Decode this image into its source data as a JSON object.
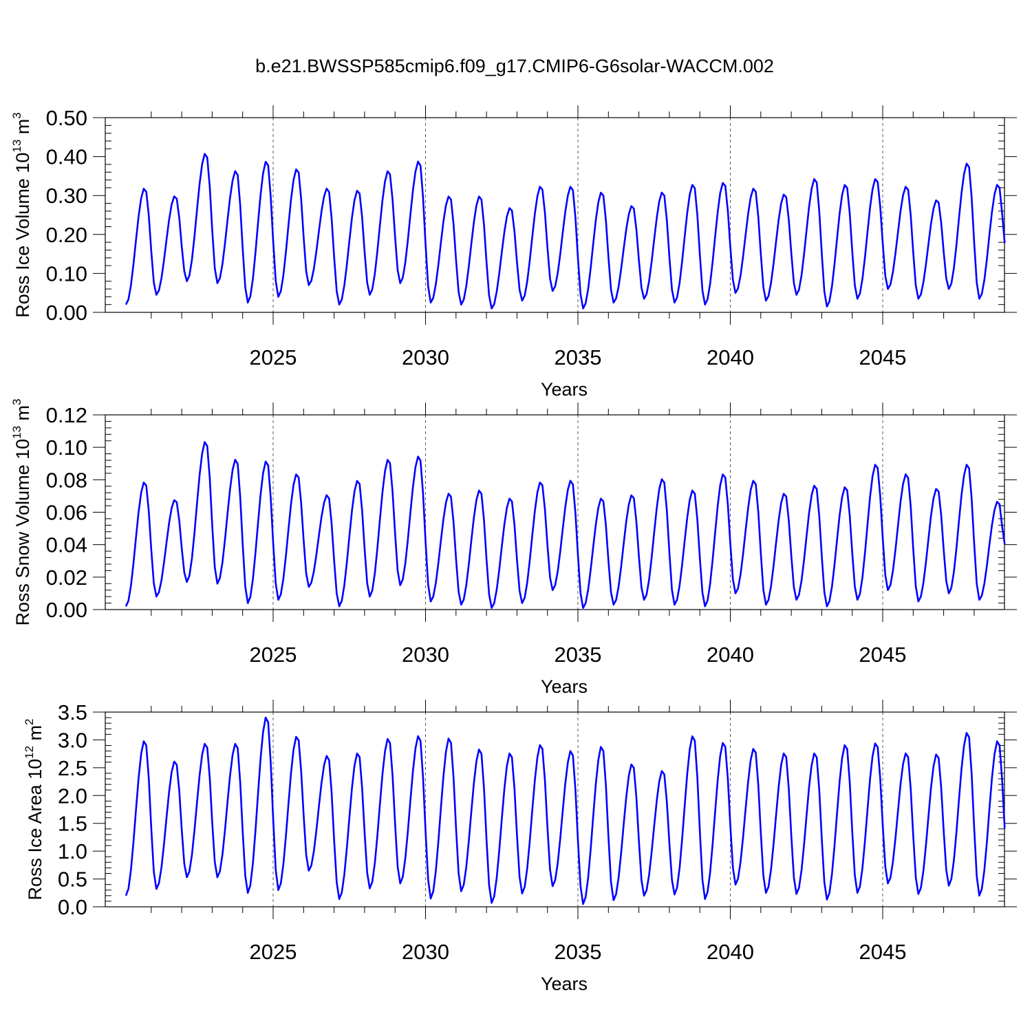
{
  "title": "b.e21.BWSSP585cmip6.f09_g17.CMIP6-G6solar-WACCM.002",
  "chart_data": [
    {
      "type": "line",
      "ylabel": "Ross Ice Volume",
      "ylabel_unit_base": "10",
      "ylabel_unit_exp": "13",
      "ylabel_unit_tail": " m",
      "ylabel_unit_sup": "3",
      "xlabel": "Years",
      "xlim": [
        2020.17,
        2049.0
      ],
      "ylim": [
        0.0,
        0.5
      ],
      "yticks": [
        "0.00",
        "0.10",
        "0.20",
        "0.30",
        "0.40",
        "0.50"
      ],
      "ytick_values": [
        0.0,
        0.1,
        0.2,
        0.3,
        0.4,
        0.5
      ],
      "xticks": [
        "2025",
        "2030",
        "2035",
        "2040",
        "2045"
      ],
      "xtick_values": [
        2025,
        2030,
        2035,
        2040,
        2045
      ],
      "grid": "vertical dashed at major x ticks",
      "series": [
        {
          "color": "#0000ff",
          "start_year": 2020.17,
          "step_years": 0.08333,
          "peaks": [
            0.32,
            0.3,
            0.41,
            0.365,
            0.39,
            0.37,
            0.32,
            0.315,
            0.365,
            0.39,
            0.3,
            0.3,
            0.27,
            0.325,
            0.325,
            0.31,
            0.275,
            0.31,
            0.33,
            0.335,
            0.32,
            0.305,
            0.345,
            0.33,
            0.345,
            0.325,
            0.29,
            0.385,
            0.33
          ],
          "troughs": [
            0.02,
            0.045,
            0.08,
            0.075,
            0.025,
            0.04,
            0.07,
            0.02,
            0.045,
            0.075,
            0.025,
            0.02,
            0.01,
            0.03,
            0.055,
            0.01,
            0.025,
            0.035,
            0.025,
            0.02,
            0.05,
            0.03,
            0.045,
            0.015,
            0.035,
            0.06,
            0.035,
            0.06,
            0.035
          ]
        }
      ]
    },
    {
      "type": "line",
      "ylabel": "Ross Snow Volume",
      "ylabel_unit_base": "10",
      "ylabel_unit_exp": "13",
      "ylabel_unit_tail": " m",
      "ylabel_unit_sup": "3",
      "xlabel": "Years",
      "xlim": [
        2020.17,
        2049.0
      ],
      "ylim": [
        0.0,
        0.12
      ],
      "yticks": [
        "0.00",
        "0.02",
        "0.04",
        "0.06",
        "0.08",
        "0.10",
        "0.12"
      ],
      "ytick_values": [
        0.0,
        0.02,
        0.04,
        0.06,
        0.08,
        0.1,
        0.12
      ],
      "xticks": [
        "2025",
        "2030",
        "2035",
        "2040",
        "2045"
      ],
      "xtick_values": [
        2025,
        2030,
        2035,
        2040,
        2045
      ],
      "grid": "vertical dashed at major x ticks",
      "series": [
        {
          "color": "#0000ff",
          "start_year": 2020.17,
          "step_years": 0.08333,
          "peaks": [
            0.079,
            0.068,
            0.104,
            0.093,
            0.092,
            0.084,
            0.071,
            0.08,
            0.093,
            0.095,
            0.072,
            0.074,
            0.069,
            0.079,
            0.08,
            0.069,
            0.071,
            0.081,
            0.074,
            0.084,
            0.08,
            0.072,
            0.077,
            0.076,
            0.09,
            0.084,
            0.075,
            0.09,
            0.067
          ],
          "troughs": [
            0.002,
            0.008,
            0.017,
            0.016,
            0.004,
            0.006,
            0.014,
            0.002,
            0.008,
            0.015,
            0.005,
            0.003,
            0.001,
            0.004,
            0.012,
            0.001,
            0.003,
            0.006,
            0.003,
            0.002,
            0.01,
            0.003,
            0.006,
            0.002,
            0.006,
            0.012,
            0.005,
            0.01,
            0.006
          ]
        }
      ]
    },
    {
      "type": "line",
      "ylabel": "Ross Ice Area",
      "ylabel_unit_base": "10",
      "ylabel_unit_exp": "12",
      "ylabel_unit_tail": " m",
      "ylabel_unit_sup": "2",
      "xlabel": "Years",
      "xlim": [
        2020.17,
        2049.0
      ],
      "ylim": [
        0.0,
        3.5
      ],
      "yticks": [
        "0.0",
        "0.5",
        "1.0",
        "1.5",
        "2.0",
        "2.5",
        "3.0",
        "3.5"
      ],
      "ytick_values": [
        0.0,
        0.5,
        1.0,
        1.5,
        2.0,
        2.5,
        3.0,
        3.5
      ],
      "xticks": [
        "2025",
        "2030",
        "2035",
        "2040",
        "2045"
      ],
      "xtick_values": [
        2025,
        2030,
        2035,
        2040,
        2045
      ],
      "grid": "vertical dashed at major x ticks",
      "series": [
        {
          "color": "#0000ff",
          "start_year": 2020.17,
          "step_years": 0.08333,
          "peaks": [
            3.0,
            2.63,
            2.95,
            2.95,
            3.43,
            3.08,
            2.73,
            2.78,
            3.04,
            3.09,
            3.05,
            2.85,
            2.78,
            2.93,
            2.82,
            2.9,
            2.58,
            2.46,
            3.09,
            2.97,
            2.86,
            2.78,
            2.78,
            2.93,
            2.96,
            2.78,
            2.76,
            3.15,
            3.0
          ],
          "troughs": [
            0.2,
            0.32,
            0.53,
            0.53,
            0.25,
            0.3,
            0.65,
            0.14,
            0.33,
            0.42,
            0.15,
            0.28,
            0.07,
            0.24,
            0.37,
            0.05,
            0.12,
            0.2,
            0.22,
            0.14,
            0.4,
            0.25,
            0.23,
            0.13,
            0.25,
            0.42,
            0.23,
            0.38,
            0.2
          ]
        }
      ]
    }
  ]
}
